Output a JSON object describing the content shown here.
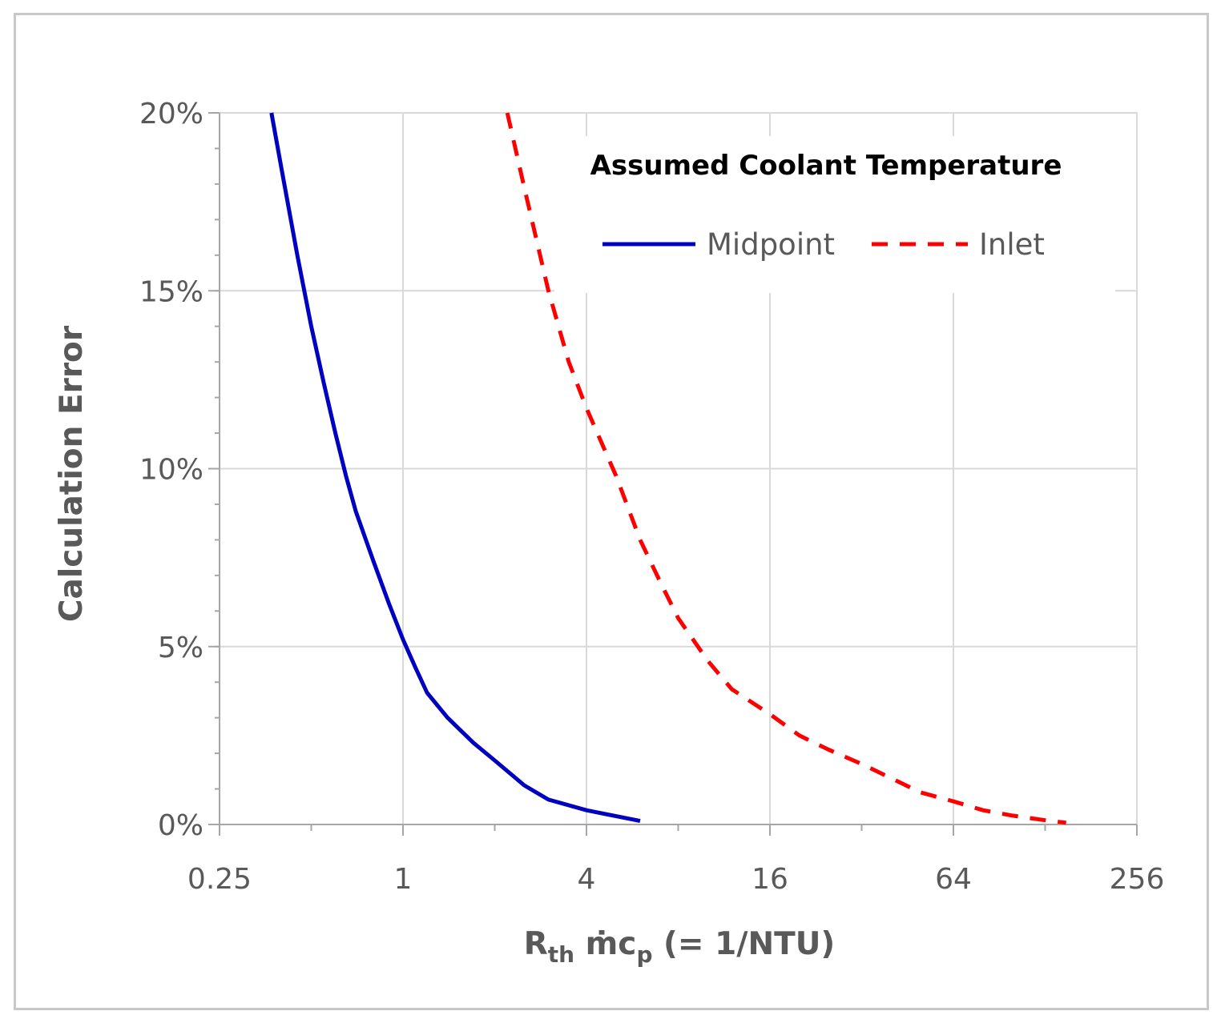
{
  "chart_data": {
    "type": "line",
    "title": "",
    "xlabel": {
      "main": "R",
      "sub1": "th",
      "mid": " ṁc",
      "sub2": "p",
      "tail": " (= 1/NTU)"
    },
    "ylabel": "Calculation Error",
    "x_scale": "log2",
    "xlim": [
      0.25,
      256
    ],
    "ylim": [
      0,
      0.2
    ],
    "x_ticks": [
      {
        "value": 0.25,
        "label": "0.25"
      },
      {
        "value": 1,
        "label": "1"
      },
      {
        "value": 4,
        "label": "4"
      },
      {
        "value": 16,
        "label": "16"
      },
      {
        "value": 64,
        "label": "64"
      },
      {
        "value": 256,
        "label": "256"
      }
    ],
    "y_ticks": [
      {
        "value": 0,
        "label": "0%"
      },
      {
        "value": 0.05,
        "label": "5%"
      },
      {
        "value": 0.1,
        "label": "10%"
      },
      {
        "value": 0.15,
        "label": "15%"
      },
      {
        "value": 0.2,
        "label": "20%"
      }
    ],
    "grid": true,
    "legend": {
      "title": "Assumed Coolant Temperature",
      "placement": "top-right",
      "entries": [
        "Midpoint",
        "Inlet"
      ]
    },
    "series": [
      {
        "name": "Midpoint",
        "color": "#0000c0",
        "style": "solid",
        "points": [
          [
            0.37,
            0.2
          ],
          [
            0.4,
            0.184
          ],
          [
            0.45,
            0.16
          ],
          [
            0.5,
            0.14
          ],
          [
            0.55,
            0.124
          ],
          [
            0.6,
            0.11
          ],
          [
            0.65,
            0.098
          ],
          [
            0.7,
            0.088
          ],
          [
            0.8,
            0.074
          ],
          [
            0.9,
            0.062
          ],
          [
            1.0,
            0.052
          ],
          [
            1.1,
            0.044
          ],
          [
            1.2,
            0.037
          ],
          [
            1.4,
            0.03
          ],
          [
            1.7,
            0.023
          ],
          [
            2.0,
            0.018
          ],
          [
            2.5,
            0.011
          ],
          [
            3.0,
            0.007
          ],
          [
            4.0,
            0.004
          ],
          [
            6.0,
            0.001
          ]
        ]
      },
      {
        "name": "Inlet",
        "color": "#ff0000",
        "style": "dashed",
        "points": [
          [
            2.2,
            0.2
          ],
          [
            2.5,
            0.179
          ],
          [
            3.0,
            0.15
          ],
          [
            3.5,
            0.13
          ],
          [
            4.0,
            0.117
          ],
          [
            5.0,
            0.098
          ],
          [
            6.0,
            0.08
          ],
          [
            7.0,
            0.068
          ],
          [
            8.0,
            0.058
          ],
          [
            10.0,
            0.046
          ],
          [
            12.0,
            0.038
          ],
          [
            16.0,
            0.031
          ],
          [
            20.0,
            0.025
          ],
          [
            25.0,
            0.021
          ],
          [
            32.0,
            0.017
          ],
          [
            40.0,
            0.013
          ],
          [
            50.0,
            0.009
          ],
          [
            64.0,
            0.0065
          ],
          [
            80.0,
            0.004
          ],
          [
            100.0,
            0.0025
          ],
          [
            128.0,
            0.0012
          ],
          [
            150.0,
            0.0005
          ]
        ]
      }
    ]
  }
}
